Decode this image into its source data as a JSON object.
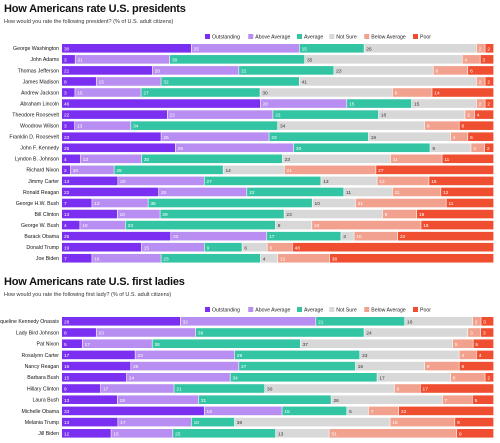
{
  "legend": [
    "Outstanding",
    "Above Average",
    "Average",
    "Not Sure",
    "Below Average",
    "Poor"
  ],
  "colors": [
    "#7b2ff0",
    "#b98ef2",
    "#33c4a4",
    "#d8d8d8",
    "#f2a18e",
    "#f04e30"
  ],
  "chart_data": [
    {
      "type": "bar",
      "stacked": true,
      "orientation": "horizontal",
      "title": "How Americans rate U.S. presidents",
      "subtitle": "How would you rate the following president? (% of U.S. adult citizens)",
      "categories": [
        "George Washington",
        "John Adams",
        "Thomas Jefferson",
        "James Madison",
        "Andrew Jackson",
        "Abraham Lincoln",
        "Theodore Roosevelt",
        "Woodrow Wilson",
        "Franklin D. Roosevelt",
        "John F. Kennedy",
        "Lyndon B. Johnson",
        "Richard Nixon",
        "Jimmy Carter",
        "Ronald Reagan",
        "George H.W. Bush",
        "Bill Clinton",
        "George W. Bush",
        "Barack Obama",
        "Donald Trump",
        "Joe Biden"
      ],
      "series": [
        {
          "name": "Outstanding",
          "values": [
            30,
            3,
            21,
            8,
            3,
            46,
            22,
            3,
            23,
            25,
            4,
            2,
            13,
            22,
            7,
            13,
            4,
            25,
            19,
            7
          ]
        },
        {
          "name": "Above Average",
          "values": [
            25,
            21,
            20,
            15,
            15,
            20,
            22,
            13,
            25,
            26,
            13,
            10,
            20,
            20,
            13,
            10,
            10,
            22,
            15,
            16
          ]
        },
        {
          "name": "Average",
          "values": [
            15,
            30,
            22,
            32,
            27,
            15,
            22,
            34,
            23,
            30,
            30,
            25,
            27,
            22,
            38,
            29,
            33,
            17,
            9,
            23
          ]
        },
        {
          "name": "Not Sure",
          "values": [
            26,
            35,
            23,
            41,
            30,
            15,
            18,
            34,
            19,
            9,
            23,
            14,
            13,
            11,
            10,
            23,
            8,
            3,
            6,
            4
          ]
        },
        {
          "name": "Below Average",
          "values": [
            2,
            4,
            8,
            2,
            9,
            2,
            2,
            8,
            4,
            3,
            11,
            21,
            12,
            11,
            21,
            8,
            24,
            10,
            6,
            12
          ]
        },
        {
          "name": "Poor",
          "values": [
            2,
            3,
            6,
            2,
            14,
            2,
            4,
            8,
            6,
            2,
            11,
            27,
            15,
            12,
            11,
            18,
            16,
            22,
            48,
            38
          ]
        }
      ]
    },
    {
      "type": "bar",
      "stacked": true,
      "orientation": "horizontal",
      "title": "How Americans rate U.S. first ladies",
      "subtitle": "How would you rate the following first lady? (% of U.S. adult citizens)",
      "categories": [
        "Jacqueline Kennedy Onassis",
        "Lady Bird Johnson",
        "Pat Nixon",
        "Rosalynn Carter",
        "Nancy Reagan",
        "Barbara Bush",
        "Hillary Clinton",
        "Laura Bush",
        "Michelle Obama",
        "Melania Trump",
        "Jill Biden"
      ],
      "series": [
        {
          "name": "Outstanding",
          "values": [
            28,
            8,
            5,
            17,
            16,
            15,
            9,
            13,
            33,
            13,
            12
          ]
        },
        {
          "name": "Above Average",
          "values": [
            32,
            23,
            17,
            23,
            25,
            24,
            17,
            19,
            18,
            17,
            15
          ]
        },
        {
          "name": "Average",
          "values": [
            21,
            39,
            36,
            29,
            27,
            34,
            21,
            31,
            15,
            10,
            25
          ]
        },
        {
          "name": "Not Sure",
          "values": [
            16,
            24,
            37,
            23,
            16,
            17,
            30,
            26,
            5,
            36,
            13
          ]
        },
        {
          "name": "Below Average",
          "values": [
            2,
            3,
            5,
            4,
            8,
            8,
            6,
            7,
            7,
            15,
            31
          ]
        },
        {
          "name": "Poor",
          "values": [
            3,
            3,
            5,
            4,
            8,
            2,
            17,
            5,
            22,
            9,
            9
          ]
        }
      ]
    }
  ]
}
